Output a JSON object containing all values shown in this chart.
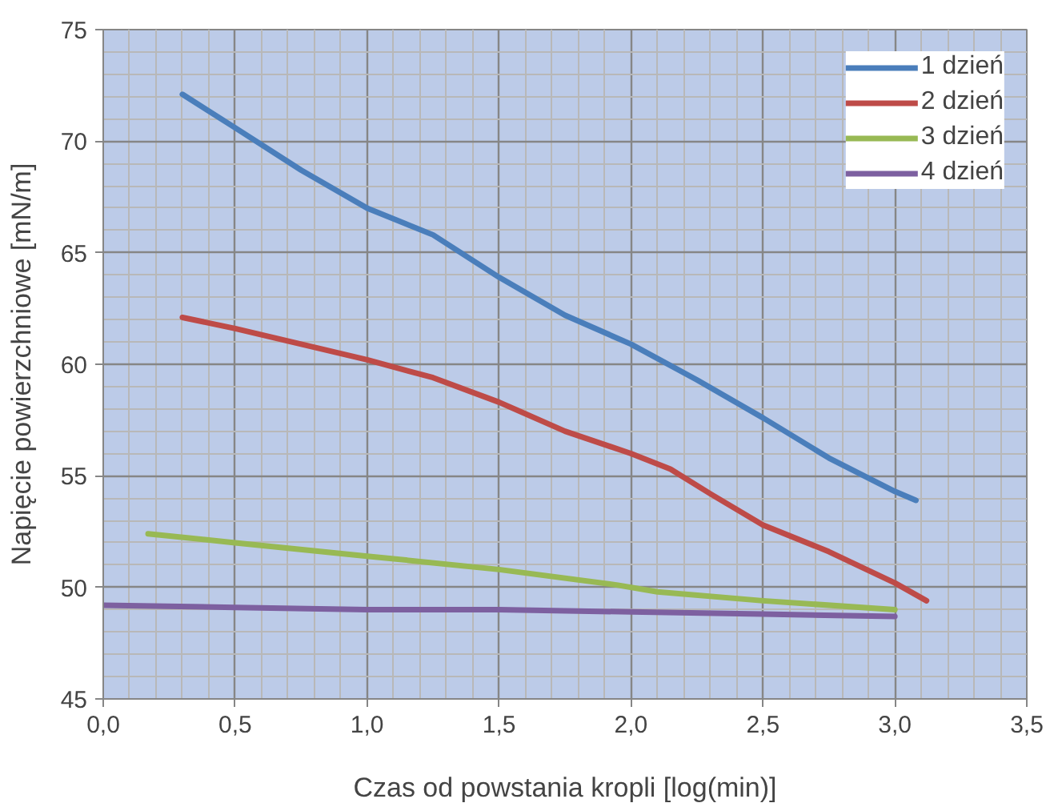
{
  "chart_data": {
    "type": "line",
    "xlabel": "Czas od powstania kropli [log(min)]",
    "ylabel": "Napięcie powierzchniowe [mN/m]",
    "xlim": [
      0,
      3.5
    ],
    "ylim": [
      45,
      75
    ],
    "xticks": [
      {
        "value": 0,
        "label": "0,0"
      },
      {
        "value": 0.5,
        "label": "0,5"
      },
      {
        "value": 1,
        "label": "1,0"
      },
      {
        "value": 1.5,
        "label": "1,5"
      },
      {
        "value": 2,
        "label": "2,0"
      },
      {
        "value": 2.5,
        "label": "2,5"
      },
      {
        "value": 3,
        "label": "3,0"
      },
      {
        "value": 3.5,
        "label": "3,5"
      }
    ],
    "yticks": [
      45,
      50,
      55,
      60,
      65,
      70,
      75
    ],
    "grid": true,
    "legend": "top right",
    "line_style": "solid",
    "marker": "none",
    "series": [
      {
        "name": "1 dzień",
        "color": "#4a7ebb",
        "x": [
          0.3,
          0.5,
          0.75,
          1.0,
          1.25,
          1.5,
          1.75,
          2.0,
          2.25,
          2.5,
          2.75,
          3.0,
          3.08
        ],
        "values": [
          72.1,
          70.6,
          68.7,
          67.0,
          65.8,
          63.9,
          62.2,
          60.9,
          59.3,
          57.6,
          55.8,
          54.3,
          53.9
        ]
      },
      {
        "name": "2 dzień",
        "color": "#be4b48",
        "x": [
          0.3,
          0.5,
          0.75,
          1.0,
          1.25,
          1.5,
          1.75,
          2.0,
          2.15,
          2.3,
          2.5,
          2.75,
          3.0,
          3.12
        ],
        "values": [
          62.1,
          61.6,
          60.9,
          60.2,
          59.4,
          58.3,
          57.0,
          56.0,
          55.3,
          54.2,
          52.8,
          51.6,
          50.2,
          49.4
        ]
      },
      {
        "name": "3 dzień",
        "color": "#98b954",
        "x": [
          0.17,
          0.5,
          1.0,
          1.5,
          1.95,
          2.1,
          2.5,
          3.0
        ],
        "values": [
          52.4,
          52.0,
          51.4,
          50.8,
          50.1,
          49.8,
          49.4,
          49.0
        ]
      },
      {
        "name": "4 dzień",
        "color": "#7d60a0",
        "x": [
          0.0,
          0.5,
          1.0,
          1.5,
          2.0,
          2.5,
          3.0
        ],
        "values": [
          49.2,
          49.1,
          49.0,
          49.0,
          48.9,
          48.8,
          48.7
        ]
      }
    ]
  }
}
